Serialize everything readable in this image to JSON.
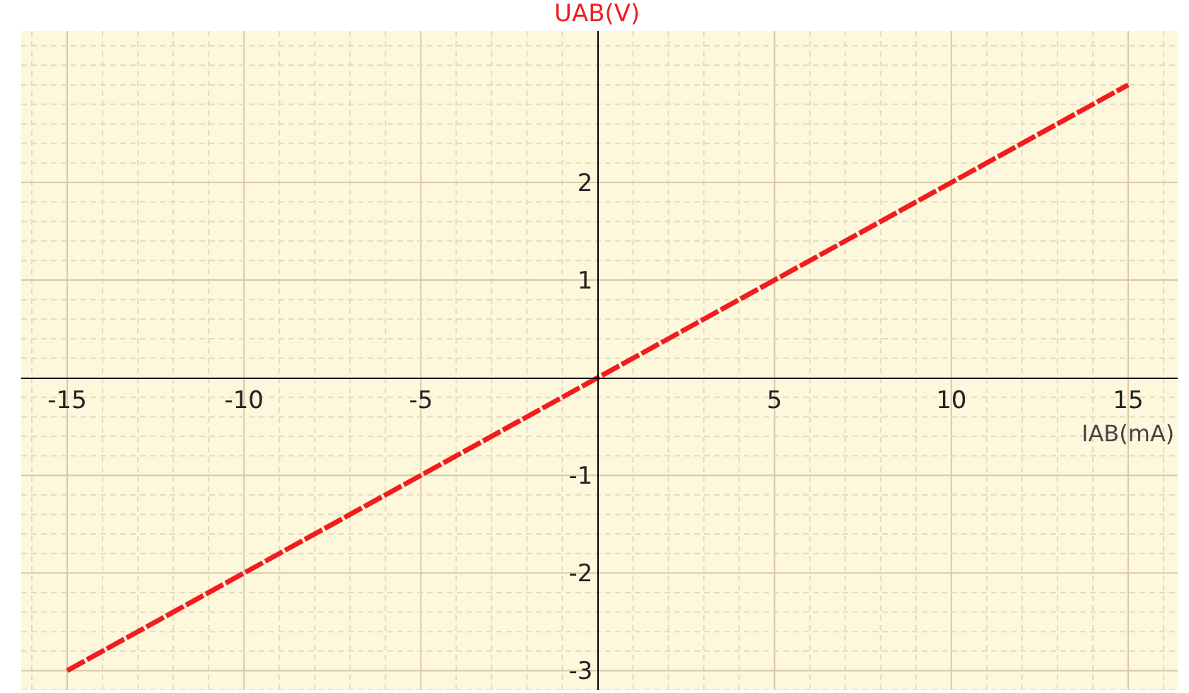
{
  "chart_data": {
    "type": "line",
    "xlabel": "IAB(mA)",
    "ylabel": "UAB(V)",
    "x": [
      -15,
      -10,
      -5,
      0,
      5,
      10,
      15
    ],
    "series": [
      {
        "color": "#f21c1c",
        "values": [
          -3,
          -2,
          -1,
          0,
          1,
          2,
          3
        ]
      }
    ],
    "xlim": [
      -16.3,
      16.4
    ],
    "ylim": [
      -3.2,
      3.55
    ],
    "xticks": [
      {
        "value": -16,
        "label": null
      },
      -15,
      {
        "value": -14,
        "label": null
      },
      {
        "value": -13,
        "label": null
      },
      {
        "value": -12,
        "label": null
      },
      {
        "value": -11,
        "label": null
      },
      -10,
      {
        "value": -9,
        "label": null
      },
      {
        "value": -8,
        "label": null
      },
      {
        "value": -7,
        "label": null
      },
      {
        "value": -6,
        "label": null
      },
      -5,
      {
        "value": -4,
        "label": null
      },
      {
        "value": -3,
        "label": null
      },
      {
        "value": -2,
        "label": null
      },
      {
        "value": -1,
        "label": null
      },
      {
        "value": 1,
        "label": null
      },
      {
        "value": 2,
        "label": null
      },
      {
        "value": 3,
        "label": null
      },
      {
        "value": 4,
        "label": null
      },
      5,
      {
        "value": 6,
        "label": null
      },
      {
        "value": 7,
        "label": null
      },
      {
        "value": 8,
        "label": null
      },
      {
        "value": 9,
        "label": null
      },
      10,
      {
        "value": 11,
        "label": null
      },
      {
        "value": 12,
        "label": null
      },
      {
        "value": 13,
        "label": null
      },
      {
        "value": 14,
        "label": null
      },
      15,
      {
        "value": 16,
        "label": null
      }
    ],
    "yticks": [
      {
        "value": -3.2,
        "label": null
      },
      -3,
      {
        "value": -2.8,
        "label": null
      },
      {
        "value": -2.6,
        "label": null
      },
      {
        "value": -2.4,
        "label": null
      },
      {
        "value": -2.2,
        "label": null
      },
      -2,
      {
        "value": -1.8,
        "label": null
      },
      {
        "value": -1.6,
        "label": null
      },
      {
        "value": -1.4,
        "label": null
      },
      {
        "value": -1.2,
        "label": null
      },
      -1,
      {
        "value": -0.8,
        "label": null
      },
      {
        "value": -0.6,
        "label": null
      },
      {
        "value": -0.4,
        "label": null
      },
      {
        "value": -0.2,
        "label": null
      },
      {
        "value": 0.2,
        "label": null
      },
      {
        "value": 0.4,
        "label": null
      },
      {
        "value": 0.6,
        "label": null
      },
      {
        "value": 0.8,
        "label": null
      },
      1,
      {
        "value": 1.2,
        "label": null
      },
      {
        "value": 1.4,
        "label": null
      },
      {
        "value": 1.6,
        "label": null
      },
      {
        "value": 1.8,
        "label": null
      },
      2,
      {
        "value": 2.2,
        "label": null
      },
      {
        "value": 2.4,
        "label": null
      },
      {
        "value": 2.6,
        "label": null
      },
      {
        "value": 2.8,
        "label": null
      },
      {
        "value": 3,
        "label": null
      },
      {
        "value": 3.2,
        "label": null
      },
      {
        "value": 3.4,
        "label": null
      }
    ],
    "grid": true,
    "line_style": "dashed",
    "marker": "none"
  }
}
